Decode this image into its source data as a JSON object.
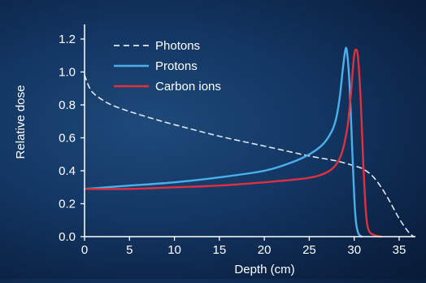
{
  "chart_data": {
    "type": "line",
    "title": "",
    "xlabel": "Depth (cm)",
    "ylabel": "Relative dose",
    "xlim": [
      0,
      37
    ],
    "ylim": [
      0,
      1.25
    ],
    "x_ticks": [
      "0",
      "5",
      "10",
      "15",
      "20",
      "25",
      "30",
      "35"
    ],
    "y_ticks": [
      "0.0",
      "0.2",
      "0.4",
      "0.6",
      "0.8",
      "1.0",
      "1.2"
    ],
    "grid": false,
    "legend_position": "top-left",
    "series": [
      {
        "name": "Photons",
        "color": "#dfe8f2",
        "style": "dashed",
        "points": [
          [
            0,
            0.98
          ],
          [
            0.5,
            0.91
          ],
          [
            1,
            0.87
          ],
          [
            2,
            0.83
          ],
          [
            3,
            0.8
          ],
          [
            5,
            0.76
          ],
          [
            8,
            0.71
          ],
          [
            10,
            0.68
          ],
          [
            15,
            0.61
          ],
          [
            20,
            0.55
          ],
          [
            25,
            0.49
          ],
          [
            28,
            0.46
          ],
          [
            30,
            0.43
          ],
          [
            31,
            0.41
          ],
          [
            32,
            0.37
          ],
          [
            33,
            0.3
          ],
          [
            34,
            0.21
          ],
          [
            35,
            0.11
          ],
          [
            36,
            0.03
          ],
          [
            36.6,
            0.0
          ]
        ]
      },
      {
        "name": "Protons",
        "color": "#4ab0ec",
        "style": "solid",
        "points": [
          [
            0,
            0.29
          ],
          [
            5,
            0.31
          ],
          [
            10,
            0.33
          ],
          [
            15,
            0.36
          ],
          [
            20,
            0.4
          ],
          [
            23,
            0.45
          ],
          [
            25,
            0.5
          ],
          [
            26.5,
            0.56
          ],
          [
            27.5,
            0.64
          ],
          [
            28,
            0.72
          ],
          [
            28.4,
            0.85
          ],
          [
            28.7,
            1.0
          ],
          [
            29,
            1.13
          ],
          [
            29.2,
            1.12
          ],
          [
            29.5,
            0.9
          ],
          [
            29.8,
            0.5
          ],
          [
            30.1,
            0.15
          ],
          [
            30.4,
            0.03
          ],
          [
            30.8,
            0.0
          ]
        ]
      },
      {
        "name": "Carbon ions",
        "color": "#e0303e",
        "style": "solid",
        "points": [
          [
            0,
            0.29
          ],
          [
            5,
            0.29
          ],
          [
            10,
            0.3
          ],
          [
            15,
            0.31
          ],
          [
            20,
            0.33
          ],
          [
            24,
            0.35
          ],
          [
            26,
            0.37
          ],
          [
            27.5,
            0.41
          ],
          [
            28.5,
            0.49
          ],
          [
            29.2,
            0.65
          ],
          [
            29.6,
            0.85
          ],
          [
            29.9,
            1.05
          ],
          [
            30.1,
            1.13
          ],
          [
            30.4,
            1.1
          ],
          [
            30.7,
            0.85
          ],
          [
            31,
            0.45
          ],
          [
            31.3,
            0.15
          ],
          [
            31.6,
            0.04
          ],
          [
            32.2,
            0.01
          ],
          [
            33,
            0.0
          ]
        ]
      }
    ]
  }
}
